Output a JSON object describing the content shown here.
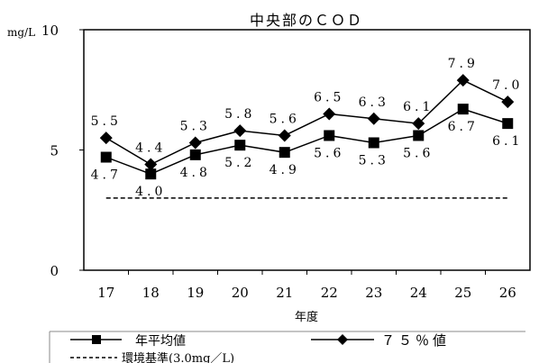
{
  "chart_data": {
    "type": "line",
    "title": "中央部のＣＯＤ",
    "xlabel": "年度",
    "ylabel": "mg/L",
    "categories": [
      "17",
      "18",
      "19",
      "20",
      "21",
      "22",
      "23",
      "24",
      "25",
      "26"
    ],
    "ylim": [
      0,
      10
    ],
    "yticks": [
      "0",
      "5",
      "10"
    ],
    "grid": false,
    "legend_placement": "bottom",
    "series": [
      {
        "name": "年平均値",
        "marker": "square",
        "color": "#000000",
        "values": [
          4.7,
          4.0,
          4.8,
          5.2,
          4.9,
          5.6,
          5.3,
          5.6,
          6.7,
          6.1
        ],
        "labels": [
          "4.7",
          "4.0",
          "4.8",
          "5.2",
          "4.9",
          "5.6",
          "5.3",
          "5.6",
          "6.7",
          "6.1"
        ]
      },
      {
        "name": "７５％値",
        "marker": "diamond",
        "color": "#000000",
        "values": [
          5.5,
          4.4,
          5.3,
          5.8,
          5.6,
          6.5,
          6.3,
          6.1,
          7.9,
          7.0
        ],
        "labels": [
          "5.5",
          "4.4",
          "5.3",
          "5.8",
          "5.6",
          "6.5",
          "6.3",
          "6.1",
          "7.9",
          "7.0"
        ]
      }
    ],
    "reference_line": {
      "name": "環境基準(3.0mg／L)",
      "value": 3.0,
      "style": "dashed"
    }
  }
}
